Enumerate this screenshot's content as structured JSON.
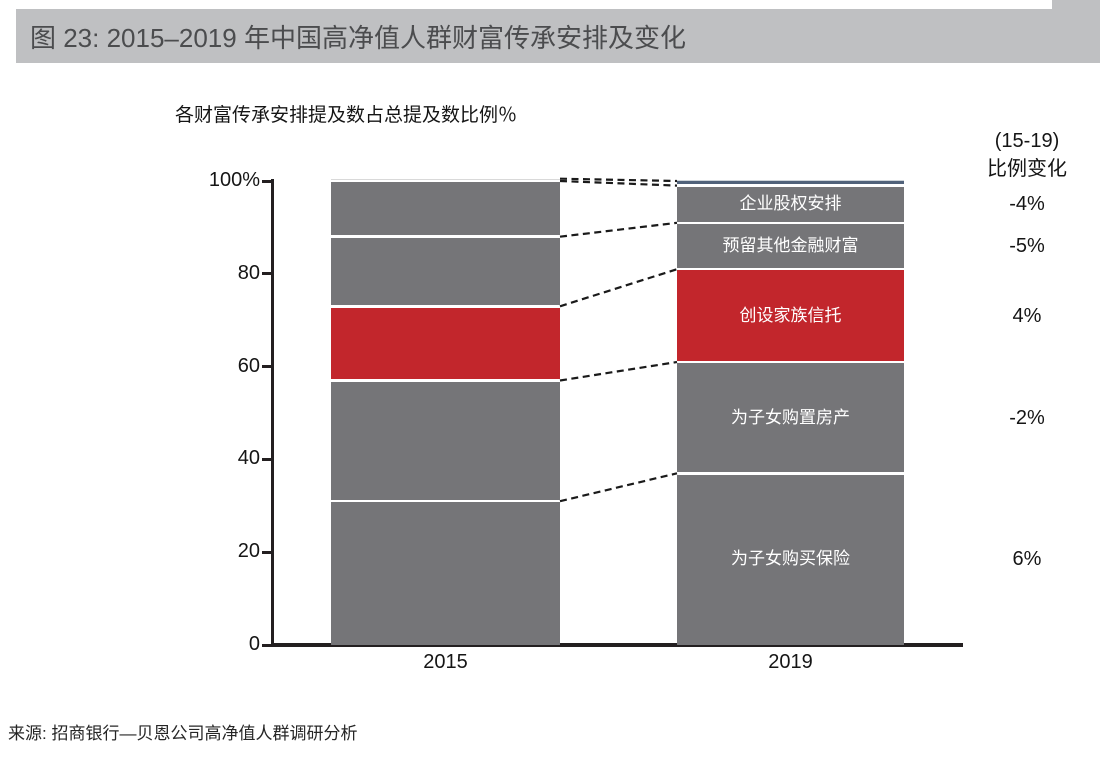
{
  "header": {
    "title": "图 23: 2015–2019 年中国高净值人群财富传承安排及变化"
  },
  "chart_data": {
    "type": "bar",
    "variant": "stacked-100-percent-columns",
    "title": "各财富传承安排提及数占总提及数比例％",
    "categories": [
      "2015",
      "2019"
    ],
    "stack_order": "bottom-to-top",
    "series": [
      {
        "name": "为子女购买保险",
        "values": [
          31,
          37
        ],
        "change_15_19": "6%",
        "color": "#757578"
      },
      {
        "name": "为子女购置房产",
        "values": [
          26,
          24
        ],
        "change_15_19": "-2%",
        "color": "#757578"
      },
      {
        "name": "创设家族信托",
        "values": [
          16,
          20
        ],
        "change_15_19": "4%",
        "color": "#c2262c"
      },
      {
        "name": "预留其他金融财富",
        "values": [
          15,
          10
        ],
        "change_15_19": "-5%",
        "color": "#757578"
      },
      {
        "name": "企业股权安排",
        "values": [
          12,
          8
        ],
        "change_15_19": "-4%",
        "color": "#757578"
      },
      {
        "name": "",
        "values": [
          0.5,
          1
        ],
        "change_15_19": "",
        "color": "#d9d9d9",
        "color_2019": "#51627a",
        "note": "unlabeled thin sliver at top of both columns"
      }
    ],
    "y_axis": {
      "range": [
        0,
        100
      ],
      "tick_values": [
        100,
        80,
        60,
        40,
        20,
        0
      ],
      "tick_labels": [
        "100%",
        "80",
        "60",
        "40",
        "20",
        "0"
      ]
    },
    "change_column": {
      "header": [
        "(15-19)",
        "比例变化"
      ]
    },
    "annotations": {
      "connector_style": "black dashed lines linking each segment boundary of the 2015 column to the 2019 column",
      "segment_labels_position": "white text centered inside the 2019 column segments"
    },
    "grid": false,
    "legend": false
  },
  "source": {
    "text": "来源: 招商银行—贝恩公司高净值人群调研分析"
  }
}
